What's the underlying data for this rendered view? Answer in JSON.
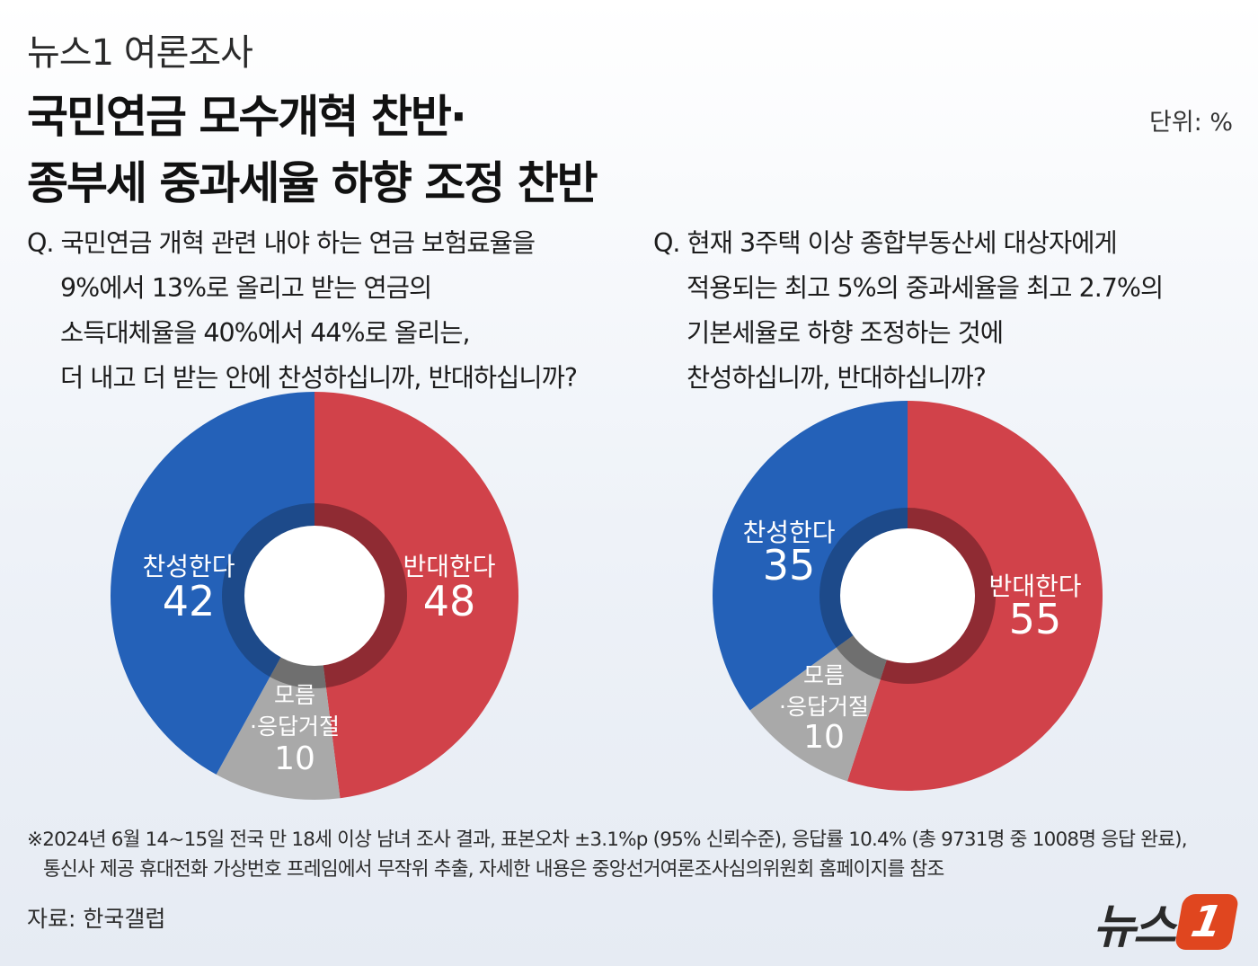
{
  "kicker": "뉴스1 여론조사",
  "title_line1": "국민연금 모수개혁 찬반·",
  "title_line2": "종부세 중과세율 하향 조정 찬반",
  "unit": "단위: %",
  "questions": [
    {
      "lines": [
        "Q. 국민연금 개혁 관련 내야 하는 연금 보험료율을",
        "9%에서 13%로 올리고 받는 연금의",
        "소득대체율을 40%에서 44%로 올리는,",
        "더 내고 더 받는 안에 찬성하십니까, 반대하십니까?"
      ]
    },
    {
      "lines": [
        "Q. 현재 3주택 이상 종합부동산세 대상자에게",
        "적용되는 최고 5%의 중과세율을 최고 2.7%의",
        "기본세율로 하향 조정하는 것에",
        "찬성하십니까, 반대하십니까?"
      ]
    }
  ],
  "colors": {
    "oppose": "#d1424a",
    "support": "#2461b8",
    "unknown": "#a9a9a9"
  },
  "chart_data": [
    {
      "type": "pie",
      "categories": [
        "반대한다",
        "모름·응답거절",
        "찬성한다"
      ],
      "values": [
        48,
        10,
        42
      ],
      "labels": {
        "oppose": {
          "text": "반대한다",
          "value": "48"
        },
        "unknown": {
          "text1": "모름",
          "text2": "·응답거절",
          "value": "10"
        },
        "support": {
          "text": "찬성한다",
          "value": "42"
        }
      }
    },
    {
      "type": "pie",
      "categories": [
        "반대한다",
        "모름·응답거절",
        "찬성한다"
      ],
      "values": [
        55,
        10,
        35
      ],
      "labels": {
        "oppose": {
          "text": "반대한다",
          "value": "55"
        },
        "unknown": {
          "text1": "모름",
          "text2": "·응답거절",
          "value": "10"
        },
        "support": {
          "text": "찬성한다",
          "value": "35"
        }
      }
    }
  ],
  "footnote_line1": "※2024년 6월 14~15일 전국 만 18세 이상 남녀 조사 결과, 표본오차 ±3.1%p (95% 신뢰수준), 응답률 10.4% (총 9731명 중 1008명 응답 완료),",
  "footnote_line2": "통신사 제공 휴대전화 가상번호 프레임에서 무작위 추출, 자세한 내용은 중앙선거여론조사심의위원회 홈페이지를 참조",
  "source": "자료: 한국갤럽",
  "logo": {
    "text": "뉴스",
    "mark": "1"
  }
}
